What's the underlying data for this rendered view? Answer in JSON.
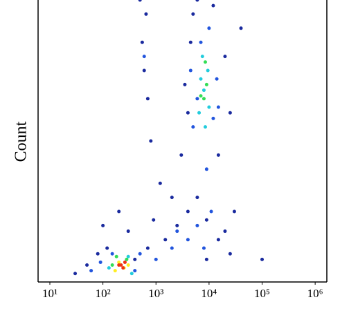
{
  "chart_data": {
    "type": "scatter",
    "y_label": "Count",
    "xscale": "log",
    "xlim": [
      6,
      1660000
    ],
    "ylim": [
      0,
      100
    ],
    "xticks": [
      {
        "value": 10,
        "label": "10¹"
      },
      {
        "value": 100,
        "label": "10²"
      },
      {
        "value": 1000,
        "label": "10³"
      },
      {
        "value": 10000,
        "label": "10⁴"
      },
      {
        "value": 100000,
        "label": "10⁵"
      },
      {
        "value": 1000000,
        "label": "10⁶"
      }
    ],
    "series": [
      {
        "color": "#1a2a9e",
        "x": [
          30,
          50,
          80,
          120,
          400,
          700,
          1500,
          2500,
          4000,
          6000,
          9000,
          15000,
          20000,
          25000,
          600,
          550,
          650,
          500,
          700,
          800,
          1200,
          3000,
          4000,
          4500,
          5000,
          12000,
          20000,
          25000,
          15000,
          3500,
          100,
          200,
          300,
          900,
          2000,
          9000,
          30000,
          6000,
          40000,
          100000
        ],
        "values": [
          3,
          6,
          10,
          12,
          8,
          12,
          15,
          20,
          25,
          30,
          22,
          15,
          18,
          10,
          75,
          85,
          95,
          100,
          65,
          50,
          35,
          45,
          60,
          85,
          95,
          98,
          80,
          60,
          45,
          70,
          20,
          25,
          18,
          22,
          30,
          8,
          25,
          100,
          90,
          8
        ]
      },
      {
        "color": "#2255dd",
        "x": [
          60,
          90,
          400,
          500,
          1000,
          2000,
          4000,
          8000,
          5000,
          6000,
          12000,
          14000,
          7000,
          10000,
          4500,
          15000,
          9000,
          600,
          2500,
          150,
          6000,
          11000
        ],
        "values": [
          4,
          7,
          4,
          10,
          8,
          12,
          15,
          12,
          55,
          65,
          58,
          72,
          85,
          90,
          75,
          62,
          40,
          80,
          18,
          10,
          20,
          25
        ]
      },
      {
        "color": "#22ccdd",
        "x": [
          130,
          300,
          350,
          6500,
          8000,
          9500,
          7500,
          10000,
          8500,
          7000
        ],
        "values": [
          5,
          9,
          3,
          60,
          68,
          75,
          80,
          62,
          55,
          72
        ]
      },
      {
        "color": "#33dd55",
        "x": [
          150,
          280,
          180,
          8000,
          9000,
          7000,
          8500
        ],
        "values": [
          6,
          8,
          9,
          65,
          70,
          66,
          78
        ]
      },
      {
        "color": "#ffee22",
        "x": [
          200,
          250,
          170,
          300
        ],
        "values": [
          7,
          5,
          4,
          6
        ]
      },
      {
        "color": "#ee3311",
        "x": [
          220,
          240,
          200,
          260
        ],
        "values": [
          6,
          5,
          6,
          7
        ]
      }
    ]
  }
}
